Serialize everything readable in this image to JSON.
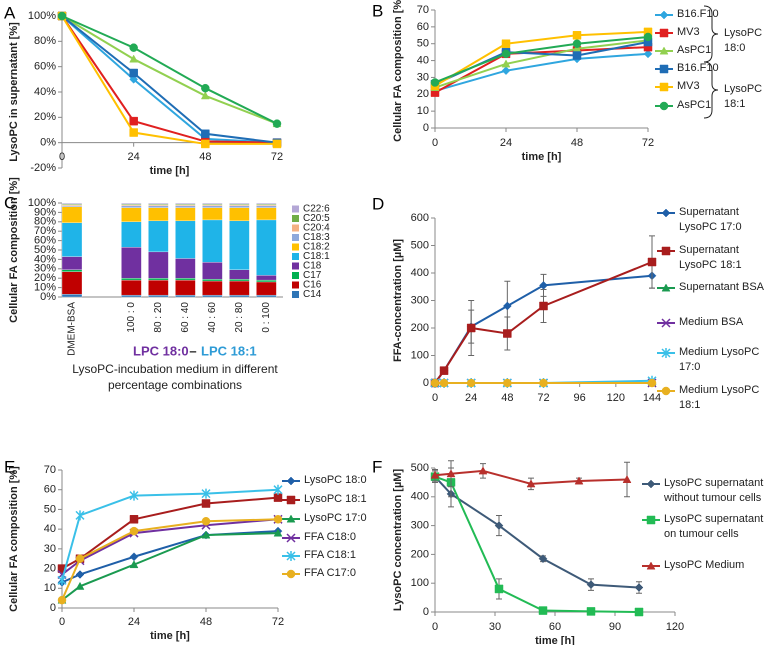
{
  "chart_data": [
    {
      "type": "line",
      "label": "A",
      "ylabel": "LysoPC in supernatant [%]",
      "xlabel": "time [h]",
      "x": [
        0,
        24,
        48,
        72
      ],
      "xlim": [
        0,
        72
      ],
      "xticks": [
        0,
        24,
        48,
        72
      ],
      "ylim": [
        -20,
        100
      ],
      "yticks": [
        {
          "value": -20,
          "label": "-20%"
        },
        {
          "value": 0,
          "label": "0%"
        },
        {
          "value": 20,
          "label": "20%"
        },
        {
          "value": 40,
          "label": "40%"
        },
        {
          "value": 60,
          "label": "60%"
        },
        {
          "value": 80,
          "label": "80%"
        },
        {
          "value": 100,
          "label": "100%"
        }
      ],
      "series": [
        {
          "color": "#2fa6df",
          "marker": "diamond",
          "values": [
            100,
            50,
            3,
            0
          ]
        },
        {
          "color": "#e02020",
          "marker": "square",
          "values": [
            100,
            17,
            1,
            0
          ]
        },
        {
          "color": "#92d050",
          "marker": "triangle",
          "values": [
            100,
            66,
            37,
            15
          ]
        },
        {
          "color": "#1f6db5",
          "marker": "square",
          "values": [
            100,
            55,
            7,
            0
          ]
        },
        {
          "color": "#ffc000",
          "marker": "square",
          "values": [
            100,
            8,
            -1,
            -1
          ]
        },
        {
          "color": "#22aa55",
          "marker": "circle",
          "values": [
            100,
            75,
            43,
            15
          ]
        }
      ]
    },
    {
      "type": "line",
      "label": "B",
      "ylabel": "Cellular FA composition [%]",
      "xlabel": "time [h]",
      "x": [
        0,
        24,
        48,
        72
      ],
      "xlim": [
        0,
        72
      ],
      "xticks": [
        0,
        24,
        48,
        72
      ],
      "ylim": [
        0,
        70
      ],
      "yticks": [
        0,
        10,
        20,
        30,
        40,
        50,
        60,
        70
      ],
      "annotations": [
        "LysoPC 18:0",
        "LysoPC 18:1"
      ],
      "series": [
        {
          "name": "B16.F10",
          "color": "#2fa6df",
          "marker": "diamond",
          "values": [
            22,
            34,
            41,
            44
          ]
        },
        {
          "name": "MV3",
          "color": "#e02020",
          "marker": "square",
          "values": [
            21,
            44,
            46,
            48
          ]
        },
        {
          "name": "AsPC1",
          "color": "#92d050",
          "marker": "triangle",
          "values": [
            24,
            38,
            47,
            52
          ]
        },
        {
          "name": "B16.F10",
          "color": "#1f6db5",
          "marker": "square",
          "values": [
            26,
            45,
            43,
            51
          ]
        },
        {
          "name": "MV3",
          "color": "#ffc000",
          "marker": "square",
          "values": [
            25,
            50,
            55,
            57
          ]
        },
        {
          "name": "AsPC1",
          "color": "#22aa55",
          "marker": "circle",
          "values": [
            27,
            44,
            50,
            54
          ]
        }
      ]
    },
    {
      "type": "stacked_bar",
      "label": "C",
      "ylabel": "Cellular FA composition [%]",
      "xlabel": "LysoPC-incubation medium in different percentage combinations",
      "annotations": [
        {
          "text": "LPC 18:0",
          "color": "#7030a0"
        },
        {
          "text": "–",
          "color": "#222222"
        },
        {
          "text": "LPC 18:1",
          "color": "#2e9bd6"
        }
      ],
      "categories": [
        "DMEM-BSA",
        "100 : 0",
        "80 : 20",
        "60 : 40",
        "40 : 60",
        "20 : 80",
        "0 : 100"
      ],
      "ylim": [
        0,
        100
      ],
      "yticks": [
        {
          "value": 0,
          "label": "0%"
        },
        {
          "value": 10,
          "label": "10%"
        },
        {
          "value": 20,
          "label": "20%"
        },
        {
          "value": 30,
          "label": "30%"
        },
        {
          "value": 40,
          "label": "40%"
        },
        {
          "value": 50,
          "label": "50%"
        },
        {
          "value": 60,
          "label": "60%"
        },
        {
          "value": 70,
          "label": "70%"
        },
        {
          "value": 80,
          "label": "80%"
        },
        {
          "value": 90,
          "label": "90%"
        },
        {
          "value": 100,
          "label": "100%"
        }
      ],
      "series": [
        {
          "name": "C14",
          "color": "#2e75b6",
          "values": [
            3,
            2,
            2,
            2,
            2,
            2,
            2
          ]
        },
        {
          "name": "C16",
          "color": "#c00000",
          "values": [
            24,
            16,
            16,
            16,
            15,
            15,
            14
          ]
        },
        {
          "name": "C17",
          "color": "#00b050",
          "values": [
            2,
            2,
            2,
            2,
            2,
            2,
            2
          ]
        },
        {
          "name": "C18",
          "color": "#7030a0",
          "values": [
            14,
            33,
            28,
            21,
            18,
            10,
            5
          ]
        },
        {
          "name": "C18:1",
          "color": "#1fb4e8",
          "values": [
            36,
            27,
            33,
            40,
            45,
            52,
            59
          ]
        },
        {
          "name": "C18:2",
          "color": "#ffc000",
          "values": [
            17,
            15,
            14,
            14,
            13,
            14,
            13
          ]
        },
        {
          "name": "C18:3",
          "color": "#8ea9db",
          "values": [
            1,
            2,
            2,
            2,
            2,
            2,
            2
          ]
        },
        {
          "name": "C20:4",
          "color": "#f4b183",
          "values": [
            1,
            1,
            1,
            1,
            1,
            1,
            1
          ]
        },
        {
          "name": "C20:5",
          "color": "#70ad47",
          "values": [
            1,
            1,
            1,
            1,
            1,
            1,
            1
          ]
        },
        {
          "name": "C22:6",
          "color": "#b4a7d6",
          "values": [
            1,
            1,
            1,
            1,
            1,
            1,
            1
          ]
        }
      ]
    },
    {
      "type": "line",
      "label": "D",
      "ylabel": "FFA-concentration [µM]",
      "x": [
        0,
        6,
        24,
        48,
        72,
        144
      ],
      "xlim": [
        0,
        144
      ],
      "xticks": [
        0,
        24,
        48,
        72,
        96,
        120,
        144
      ],
      "ylim": [
        0,
        600
      ],
      "yticks": [
        0,
        100,
        200,
        300,
        400,
        500,
        600
      ],
      "series": [
        {
          "name": "Supernatant LysoPC 17:0",
          "color": "#1f5fa8",
          "marker": "diamond",
          "values": [
            0,
            45,
            205,
            280,
            355,
            390
          ],
          "errors": [
            0,
            5,
            60,
            90,
            40,
            45
          ]
        },
        {
          "name": "Supernatant LysoPC 18:1",
          "color": "#a81d1d",
          "marker": "square",
          "values": [
            0,
            45,
            200,
            180,
            280,
            440
          ],
          "errors": [
            0,
            5,
            100,
            60,
            60,
            95
          ]
        },
        {
          "name": "Supernatant BSA",
          "color": "#1a9a50",
          "marker": "triangle",
          "values": [
            0,
            0,
            0,
            0,
            0,
            0
          ]
        },
        {
          "name": "Medium BSA",
          "color": "#7030a0",
          "marker": "x",
          "values": [
            0,
            0,
            0,
            0,
            0,
            0
          ]
        },
        {
          "name": "Medium LysoPC 17:0",
          "color": "#3ac0e8",
          "marker": "asterisk",
          "values": [
            0,
            0,
            0,
            0,
            0,
            8
          ]
        },
        {
          "name": "Medium LysoPC 18:1",
          "color": "#e8b020",
          "marker": "circle",
          "values": [
            0,
            0,
            0,
            0,
            0,
            0
          ]
        }
      ]
    },
    {
      "type": "line",
      "label": "E",
      "ylabel": "Cellular FA composition [%]",
      "xlabel": "time [h]",
      "x": [
        0,
        6,
        24,
        48,
        72
      ],
      "xlim": [
        0,
        72
      ],
      "xticks": [
        0,
        24,
        48,
        72
      ],
      "ylim": [
        0,
        70
      ],
      "yticks": [
        0,
        10,
        20,
        30,
        40,
        50,
        60,
        70
      ],
      "series": [
        {
          "name": "LysoPC 18:0",
          "color": "#1f5fa8",
          "marker": "diamond",
          "values": [
            13,
            17,
            26,
            37,
            39
          ]
        },
        {
          "name": "LysoPC 18:1",
          "color": "#a81d1d",
          "marker": "square",
          "values": [
            20,
            25,
            45,
            53,
            56
          ]
        },
        {
          "name": "LysoPC 17:0",
          "color": "#1a9a50",
          "marker": "triangle",
          "values": [
            4,
            11,
            22,
            37,
            38
          ]
        },
        {
          "name": "FFA C18:0",
          "color": "#7030a0",
          "marker": "x",
          "values": [
            17,
            24,
            38,
            42,
            45
          ]
        },
        {
          "name": "FFA C18:1",
          "color": "#3ac0e8",
          "marker": "asterisk",
          "values": [
            14,
            47,
            57,
            58,
            60
          ]
        },
        {
          "name": "FFA C17:0",
          "color": "#e8b020",
          "marker": "circle",
          "values": [
            4,
            25,
            39,
            44,
            45
          ]
        }
      ]
    },
    {
      "type": "line",
      "label": "F",
      "ylabel": "LysoPC concentration [µM]",
      "xlabel": "time [h]",
      "xlim": [
        0,
        120
      ],
      "xticks": [
        0,
        30,
        60,
        90,
        120
      ],
      "ylim": [
        0,
        500
      ],
      "yticks": [
        0,
        100,
        200,
        300,
        400,
        500
      ],
      "series": [
        {
          "name": "LysoPC supernatant without tumour cells",
          "color": "#3e5a78",
          "marker": "diamond",
          "x": [
            0,
            8,
            32,
            54,
            78,
            102
          ],
          "values": [
            470,
            410,
            300,
            185,
            95,
            85
          ],
          "errors": [
            20,
            45,
            35,
            10,
            20,
            20
          ]
        },
        {
          "name": "LysoPC supernatant on tumour cells",
          "color": "#22bb55",
          "marker": "square",
          "x": [
            0,
            8,
            32,
            54,
            78,
            102
          ],
          "values": [
            470,
            450,
            80,
            5,
            2,
            0
          ],
          "errors": [
            20,
            50,
            35,
            5,
            3,
            2
          ]
        },
        {
          "name": "LysoPC Medium",
          "color": "#b8302c",
          "marker": "triangle",
          "x": [
            0,
            8,
            24,
            48,
            72,
            96
          ],
          "values": [
            475,
            480,
            490,
            445,
            455,
            460
          ],
          "errors": [
            20,
            45,
            25,
            20,
            10,
            60
          ]
        }
      ]
    }
  ]
}
